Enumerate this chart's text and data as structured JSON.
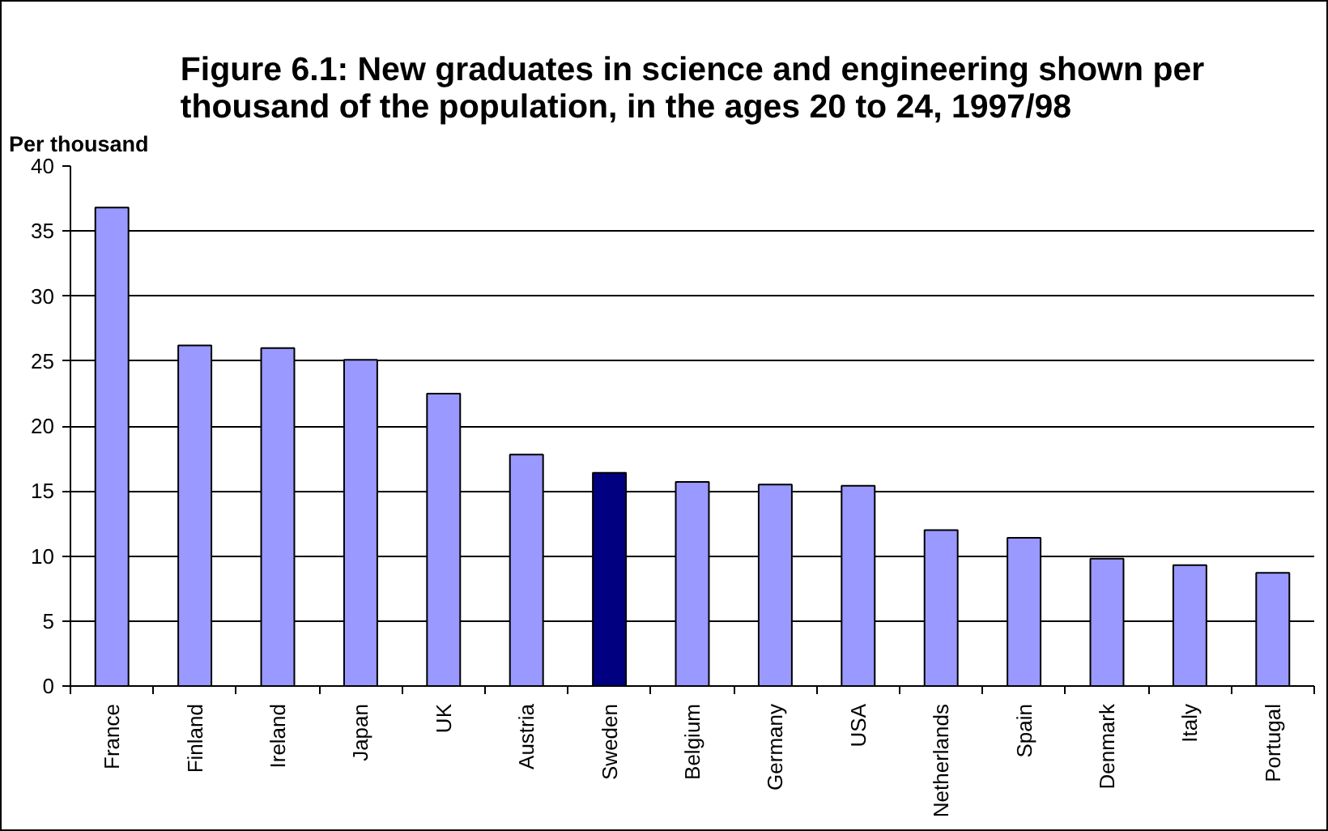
{
  "chart_data": {
    "type": "bar",
    "title": "Figure 6.1: New graduates in science and engineering shown per\nthousand of the population, in the ages 20 to 24, 1997/98",
    "ylabel": "Per thousand",
    "categories": [
      "France",
      "Finland",
      "Ireland",
      "Japan",
      "UK",
      "Austria",
      "Sweden",
      "Belgium",
      "Germany",
      "USA",
      "Netherlands",
      "Spain",
      "Denmark",
      "Italy",
      "Portugal"
    ],
    "values": [
      36.8,
      26.2,
      26.0,
      25.1,
      22.5,
      17.8,
      16.4,
      15.7,
      15.5,
      15.4,
      12.0,
      11.4,
      9.8,
      9.3,
      8.7
    ],
    "colors": [
      "#9999ff",
      "#9999ff",
      "#9999ff",
      "#9999ff",
      "#9999ff",
      "#9999ff",
      "#000080",
      "#9999ff",
      "#9999ff",
      "#9999ff",
      "#9999ff",
      "#9999ff",
      "#9999ff",
      "#9999ff",
      "#9999ff"
    ],
    "ylim": [
      0,
      40
    ],
    "yticks": [
      0,
      5,
      10,
      15,
      20,
      25,
      30,
      35,
      40
    ],
    "grid": "y"
  }
}
